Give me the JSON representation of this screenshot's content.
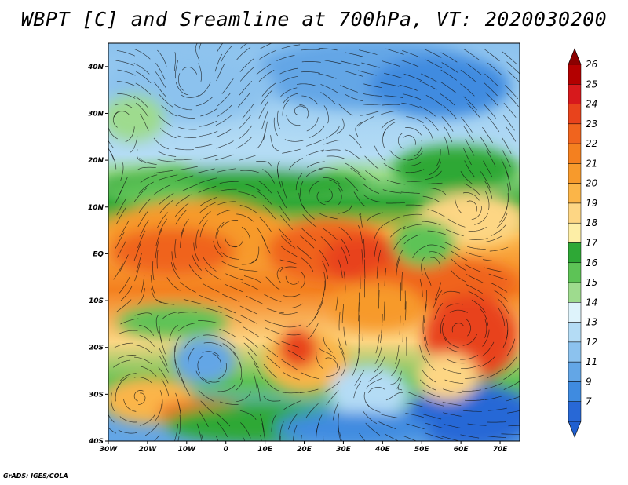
{
  "title": "WBPT [C] and Sreamline at 700hPa, VT: 2020030200",
  "credit": "GrADS: IGES/COLA",
  "map": {
    "lon_range": [
      -30,
      75
    ],
    "lat_range": [
      -40,
      45
    ],
    "lat_ticks": [
      {
        "value": 40,
        "label": "40N"
      },
      {
        "value": 30,
        "label": "30N"
      },
      {
        "value": 20,
        "label": "20N"
      },
      {
        "value": 10,
        "label": "10N"
      },
      {
        "value": 0,
        "label": "EQ"
      },
      {
        "value": -10,
        "label": "10S"
      },
      {
        "value": -20,
        "label": "20S"
      },
      {
        "value": -30,
        "label": "30S"
      },
      {
        "value": -40,
        "label": "40S"
      }
    ],
    "lon_ticks": [
      {
        "value": -30,
        "label": "30W"
      },
      {
        "value": -20,
        "label": "20W"
      },
      {
        "value": -10,
        "label": "10W"
      },
      {
        "value": 0,
        "label": "0"
      },
      {
        "value": 10,
        "label": "10E"
      },
      {
        "value": 20,
        "label": "20E"
      },
      {
        "value": 30,
        "label": "30E"
      },
      {
        "value": 40,
        "label": "40E"
      },
      {
        "value": 50,
        "label": "50E"
      },
      {
        "value": 60,
        "label": "60E"
      },
      {
        "value": 70,
        "label": "70E"
      }
    ]
  },
  "colorbar": {
    "levels": [
      {
        "label": "26",
        "color": "#b30000"
      },
      {
        "label": "25",
        "color": "#d7191c"
      },
      {
        "label": "24",
        "color": "#e8431c"
      },
      {
        "label": "23",
        "color": "#f0641e"
      },
      {
        "label": "22",
        "color": "#f4801f"
      },
      {
        "label": "21",
        "color": "#f79a2c"
      },
      {
        "label": "20",
        "color": "#fbb548"
      },
      {
        "label": "19",
        "color": "#fdd684"
      },
      {
        "label": "18",
        "color": "#fdeea6"
      },
      {
        "label": "17",
        "color": "#2ea836"
      },
      {
        "label": "16",
        "color": "#5dc356"
      },
      {
        "label": "15",
        "color": "#9edb8e"
      },
      {
        "label": "14",
        "color": "#def3fb"
      },
      {
        "label": "13",
        "color": "#b4dcf5"
      },
      {
        "label": "12",
        "color": "#8cc2ee"
      },
      {
        "label": "11",
        "color": "#63a6e6"
      },
      {
        "label": "9",
        "color": "#3f8be0"
      },
      {
        "label": "7",
        "color": "#2868d6"
      }
    ],
    "top_arrow_color": "#8b0000",
    "bottom_arrow_color": "#1f5fd0"
  }
}
